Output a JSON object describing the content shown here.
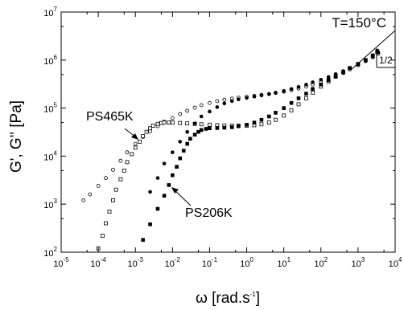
{
  "chart_data": {
    "type": "scatter",
    "xlabel": "ω [rad.s",
    "xlabel_sup": "-1",
    "xlabel_end": "]",
    "ylabel": "G', G'' [Pa]",
    "x_scale": "log",
    "y_scale": "log",
    "xlim": [
      1e-05,
      10000
    ],
    "ylim": [
      100,
      10000000
    ],
    "grid": false,
    "x_ticks": [
      {
        "base": "10",
        "exp": "-5",
        "value": 1e-05
      },
      {
        "base": "10",
        "exp": "-4",
        "value": 0.0001
      },
      {
        "base": "10",
        "exp": "-3",
        "value": 0.001
      },
      {
        "base": "10",
        "exp": "-2",
        "value": 0.01
      },
      {
        "base": "10",
        "exp": "-1",
        "value": 0.1
      },
      {
        "base": "10",
        "exp": "0",
        "value": 1
      },
      {
        "base": "10",
        "exp": "1",
        "value": 10
      },
      {
        "base": "10",
        "exp": "2",
        "value": 100
      },
      {
        "base": "10",
        "exp": "3",
        "value": 1000
      },
      {
        "base": "10",
        "exp": "4",
        "value": 10000
      }
    ],
    "y_ticks": [
      {
        "base": "10",
        "exp": "2",
        "value": 100
      },
      {
        "base": "10",
        "exp": "3",
        "value": 1000
      },
      {
        "base": "10",
        "exp": "4",
        "value": 10000
      },
      {
        "base": "10",
        "exp": "5",
        "value": 100000
      },
      {
        "base": "10",
        "exp": "6",
        "value": 1000000
      },
      {
        "base": "10",
        "exp": "7",
        "value": 10000000
      }
    ],
    "annotations": {
      "temperature": "T=150°C",
      "label_465": "PS465K",
      "label_206": "PS206K",
      "slope": "1/2"
    },
    "series": [
      {
        "marker": "open-circle",
        "points": [
          [
            4e-05,
            1200
          ],
          [
            6e-05,
            1600
          ],
          [
            0.0001,
            2400
          ],
          [
            0.00016,
            3500
          ],
          [
            0.00025,
            5200
          ],
          [
            0.0004,
            8000
          ],
          [
            0.0006,
            12000
          ],
          [
            0.001,
            18000
          ],
          [
            0.0016,
            25000
          ],
          [
            0.0025,
            33000
          ],
          [
            0.004,
            42000
          ],
          [
            0.006,
            52000
          ],
          [
            0.01,
            62000
          ],
          [
            0.016,
            75000
          ],
          [
            0.025,
            88000
          ],
          [
            0.04,
            102000
          ],
          [
            0.06,
            115000
          ],
          [
            0.1,
            128000
          ],
          [
            0.16,
            140000
          ],
          [
            0.25,
            150000
          ],
          [
            0.4,
            158000
          ],
          [
            0.6,
            165000
          ],
          [
            1,
            172000
          ],
          [
            1.6,
            180000
          ],
          [
            2.5,
            188000
          ],
          [
            4,
            197000
          ],
          [
            6,
            207000
          ],
          [
            10,
            220000
          ],
          [
            16,
            235000
          ],
          [
            25,
            255000
          ],
          [
            40,
            280000
          ],
          [
            60,
            310000
          ],
          [
            100,
            350000
          ],
          [
            160,
            400000
          ],
          [
            250,
            460000
          ],
          [
            400,
            540000
          ],
          [
            600,
            640000
          ],
          [
            1000,
            780000
          ],
          [
            1600,
            950000
          ],
          [
            2500,
            1150000
          ],
          [
            3500,
            1350000
          ]
        ]
      },
      {
        "marker": "open-square",
        "points": [
          [
            0.0001,
            120
          ],
          [
            0.00013,
            220
          ],
          [
            0.00016,
            400
          ],
          [
            0.0002,
            700
          ],
          [
            0.00025,
            1200
          ],
          [
            0.0003,
            2000
          ],
          [
            0.0004,
            3300
          ],
          [
            0.0005,
            5000
          ],
          [
            0.0006,
            7500
          ],
          [
            0.0008,
            11000
          ],
          [
            0.001,
            15000
          ],
          [
            0.0013,
            20000
          ],
          [
            0.0016,
            26000
          ],
          [
            0.002,
            32000
          ],
          [
            0.0025,
            38000
          ],
          [
            0.003,
            43000
          ],
          [
            0.004,
            47000
          ],
          [
            0.005,
            49000
          ],
          [
            0.006,
            50000
          ],
          [
            0.008,
            50500
          ],
          [
            0.01,
            50000
          ],
          [
            0.016,
            49000
          ],
          [
            0.025,
            48000
          ],
          [
            0.04,
            47000
          ],
          [
            0.06,
            46000
          ],
          [
            0.1,
            45000
          ],
          [
            0.16,
            44000
          ],
          [
            0.25,
            43500
          ],
          [
            0.4,
            43000
          ],
          [
            0.6,
            43000
          ],
          [
            1,
            43000
          ],
          [
            1.6,
            44000
          ],
          [
            2.5,
            46000
          ],
          [
            4,
            50000
          ],
          [
            6,
            57000
          ],
          [
            10,
            70000
          ],
          [
            16,
            90000
          ],
          [
            25,
            120000
          ],
          [
            40,
            160000
          ],
          [
            60,
            210000
          ],
          [
            100,
            280000
          ],
          [
            160,
            360000
          ],
          [
            250,
            450000
          ],
          [
            400,
            560000
          ],
          [
            600,
            680000
          ],
          [
            1000,
            830000
          ],
          [
            1600,
            1000000
          ],
          [
            2500,
            1200000
          ],
          [
            3300,
            1450000
          ]
        ]
      },
      {
        "marker": "filled-circle",
        "points": [
          [
            0.0025,
            1800
          ],
          [
            0.004,
            3500
          ],
          [
            0.006,
            7000
          ],
          [
            0.01,
            12000
          ],
          [
            0.016,
            20000
          ],
          [
            0.025,
            32000
          ],
          [
            0.04,
            48000
          ],
          [
            0.06,
            67000
          ],
          [
            0.1,
            85000
          ],
          [
            0.16,
            105000
          ],
          [
            0.25,
            125000
          ],
          [
            0.4,
            140000
          ],
          [
            0.6,
            152000
          ],
          [
            1,
            163000
          ],
          [
            1.6,
            173000
          ],
          [
            2.5,
            184000
          ],
          [
            4,
            196000
          ],
          [
            6,
            210000
          ],
          [
            10,
            228000
          ],
          [
            16,
            250000
          ],
          [
            25,
            276000
          ],
          [
            40,
            308000
          ],
          [
            60,
            345000
          ],
          [
            100,
            390000
          ],
          [
            160,
            445000
          ],
          [
            250,
            510000
          ],
          [
            400,
            590000
          ],
          [
            600,
            690000
          ],
          [
            1000,
            820000
          ],
          [
            1600,
            980000
          ],
          [
            2500,
            1200000
          ],
          [
            3500,
            1450000
          ]
        ]
      },
      {
        "marker": "filled-square",
        "points": [
          [
            0.0016,
            180
          ],
          [
            0.0025,
            380
          ],
          [
            0.004,
            800
          ],
          [
            0.006,
            1500
          ],
          [
            0.008,
            2500
          ],
          [
            0.01,
            4000
          ],
          [
            0.013,
            6000
          ],
          [
            0.016,
            9000
          ],
          [
            0.02,
            13000
          ],
          [
            0.025,
            18000
          ],
          [
            0.03,
            23000
          ],
          [
            0.04,
            28000
          ],
          [
            0.05,
            32000
          ],
          [
            0.06,
            35000
          ],
          [
            0.08,
            37000
          ],
          [
            0.1,
            38000
          ],
          [
            0.16,
            38500
          ],
          [
            0.25,
            39000
          ],
          [
            0.4,
            40000
          ],
          [
            0.6,
            42000
          ],
          [
            1,
            45000
          ],
          [
            1.6,
            50000
          ],
          [
            2.5,
            57000
          ],
          [
            4,
            67000
          ],
          [
            6,
            80000
          ],
          [
            10,
            100000
          ],
          [
            16,
            128000
          ],
          [
            25,
            160000
          ],
          [
            40,
            200000
          ],
          [
            60,
            250000
          ],
          [
            100,
            310000
          ],
          [
            160,
            380000
          ],
          [
            250,
            460000
          ],
          [
            400,
            560000
          ],
          [
            600,
            680000
          ],
          [
            1000,
            820000
          ],
          [
            1600,
            1000000
          ],
          [
            2500,
            1250000
          ],
          [
            3300,
            1550000
          ]
        ]
      }
    ]
  }
}
